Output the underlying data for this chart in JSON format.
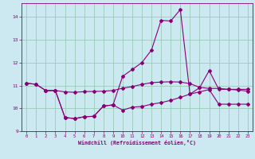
{
  "xlabel": "Windchill (Refroidissement éolien,°C)",
  "bg_color": "#cce8f0",
  "line_color": "#880077",
  "grid_color": "#99ccbb",
  "xlim": [
    -0.5,
    23.5
  ],
  "ylim": [
    9.0,
    14.6
  ],
  "yticks": [
    9,
    10,
    11,
    12,
    13,
    14
  ],
  "xticks": [
    0,
    1,
    2,
    3,
    4,
    5,
    6,
    7,
    8,
    9,
    10,
    11,
    12,
    13,
    14,
    15,
    16,
    17,
    18,
    19,
    20,
    21,
    22,
    23
  ],
  "line1_x": [
    0,
    1,
    2,
    3,
    4,
    5,
    6,
    7,
    8,
    9,
    10,
    11,
    12,
    13,
    14,
    15,
    16,
    17,
    18,
    19,
    20,
    21,
    22,
    23
  ],
  "line1_y": [
    11.1,
    11.05,
    10.78,
    10.78,
    10.72,
    10.7,
    10.73,
    10.74,
    10.75,
    10.78,
    10.88,
    10.95,
    11.05,
    11.12,
    11.15,
    11.16,
    11.15,
    11.08,
    10.92,
    10.87,
    10.87,
    10.83,
    10.83,
    10.83
  ],
  "line2_x": [
    0,
    1,
    2,
    3,
    4,
    5,
    6,
    7,
    8,
    9,
    10,
    11,
    12,
    13,
    14,
    15,
    16,
    17,
    18,
    19,
    20,
    21,
    22,
    23
  ],
  "line2_y": [
    11.1,
    11.05,
    10.78,
    10.78,
    9.6,
    9.55,
    9.63,
    9.65,
    10.1,
    10.15,
    11.4,
    11.7,
    12.0,
    12.55,
    13.85,
    13.82,
    14.32,
    10.62,
    10.9,
    11.65,
    10.83,
    10.83,
    10.8,
    10.75
  ],
  "line3_x": [
    2,
    3,
    4,
    5,
    6,
    7,
    8,
    9,
    10,
    11,
    12,
    13,
    14,
    15,
    16,
    17,
    18,
    19,
    20,
    21,
    22,
    23
  ],
  "line3_y": [
    10.78,
    10.78,
    9.6,
    9.55,
    9.63,
    9.65,
    10.1,
    10.15,
    9.92,
    10.05,
    10.08,
    10.18,
    10.25,
    10.35,
    10.48,
    10.62,
    10.72,
    10.82,
    10.18,
    10.18,
    10.18,
    10.18
  ]
}
